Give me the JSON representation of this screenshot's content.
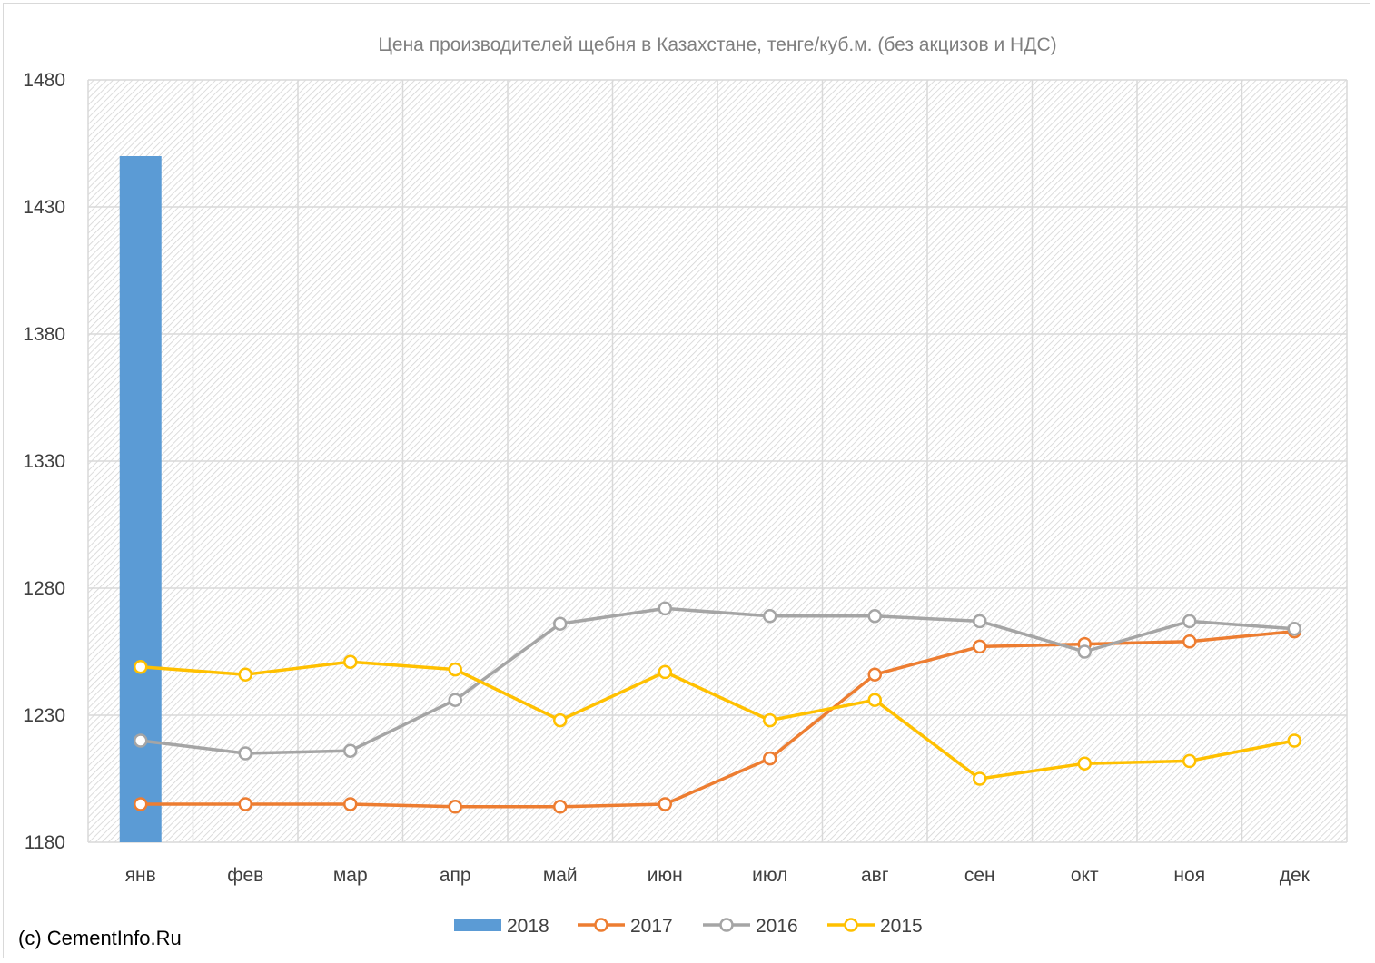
{
  "chart_data": {
    "type": "bar+line",
    "title": "Цена производителей щебня в Казахстане, тенге/куб.м. (без акцизов и НДС)",
    "categories": [
      "янв",
      "фев",
      "мар",
      "апр",
      "май",
      "июн",
      "июл",
      "авг",
      "сен",
      "окт",
      "ноя",
      "дек"
    ],
    "ylim": [
      1180,
      1480
    ],
    "yticks": [
      1180,
      1230,
      1280,
      1330,
      1380,
      1430,
      1480
    ],
    "ytick_labels": [
      "1180",
      "1230",
      "1280",
      "1330",
      "1380",
      "1430",
      "1480"
    ],
    "grid": true,
    "legend_position": "bottom",
    "series": [
      {
        "name": "2018",
        "kind": "bar",
        "color": "#5b9bd5",
        "values": [
          1450,
          null,
          null,
          null,
          null,
          null,
          null,
          null,
          null,
          null,
          null,
          null
        ]
      },
      {
        "name": "2017",
        "kind": "line",
        "color": "#ed7d31",
        "values": [
          1195,
          1195,
          1195,
          1194,
          1194,
          1195,
          1213,
          1246,
          1257,
          1258,
          1259,
          1263
        ]
      },
      {
        "name": "2016",
        "kind": "line",
        "color": "#a5a5a5",
        "values": [
          1220,
          1215,
          1216,
          1236,
          1266,
          1272,
          1269,
          1269,
          1267,
          1255,
          1267,
          1264
        ]
      },
      {
        "name": "2015",
        "kind": "line",
        "color": "#ffc000",
        "values": [
          1249,
          1246,
          1251,
          1248,
          1228,
          1247,
          1228,
          1236,
          1205,
          1211,
          1212,
          1220
        ]
      }
    ]
  },
  "watermark": "(c) CementInfo.Ru"
}
